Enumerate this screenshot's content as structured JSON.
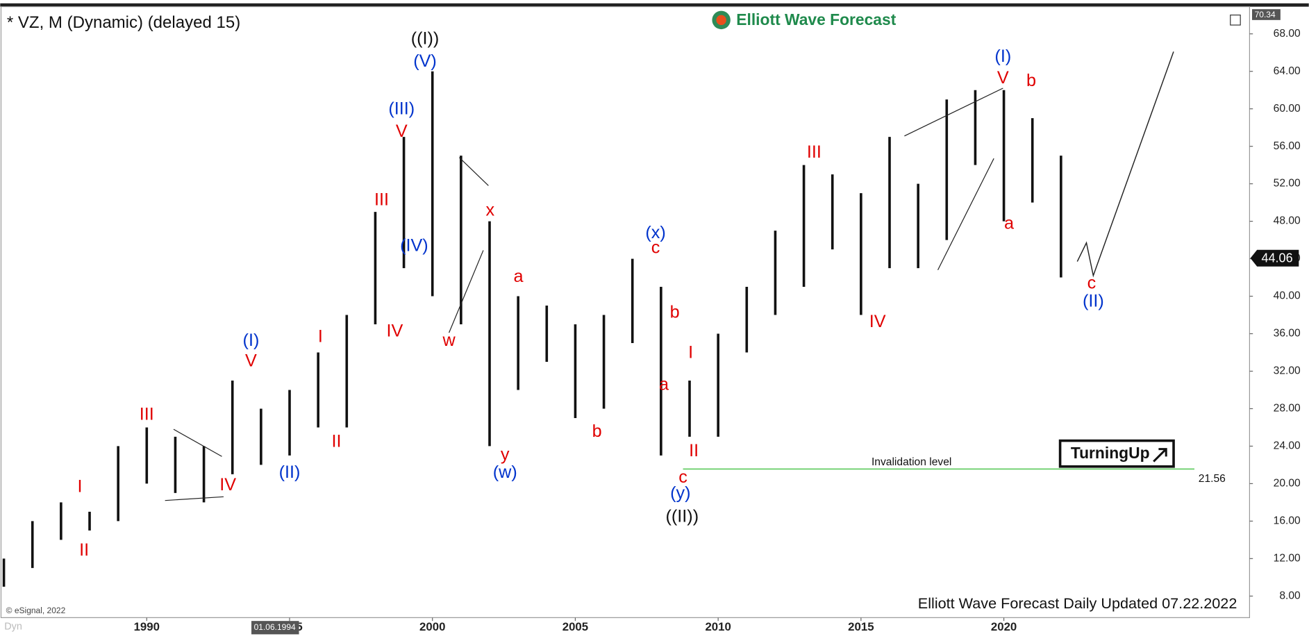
{
  "chart_data": {
    "type": "range-bar",
    "title": "* VZ, M (Dynamic) (delayed 15)",
    "brand": "Elliott Wave Forecast",
    "top_value": "70.34",
    "last_value": "44.06",
    "copyright": "© eSignal, 2022",
    "footer": "Elliott Wave Forecast Daily Updated 07.22.2022",
    "cursor_date": "01.06.1994",
    "corner_label": "Dyn",
    "badge": "TurningUp",
    "color": "#111111",
    "x": [
      1985,
      1986,
      1987,
      1988,
      1989,
      1990,
      1991,
      1992,
      1993,
      1994,
      1995,
      1996,
      1997,
      1998,
      1999,
      2000,
      2001,
      2002,
      2003,
      2004,
      2005,
      2006,
      2007,
      2008,
      2009,
      2010,
      2011,
      2012,
      2013,
      2014,
      2015,
      2016,
      2017,
      2018,
      2019,
      2020,
      2021,
      2022
    ],
    "high": [
      12,
      16,
      18,
      17,
      24,
      26,
      25,
      24,
      31,
      28,
      30,
      34,
      38,
      49,
      57,
      64,
      55,
      48,
      40,
      39,
      37,
      38,
      44,
      41,
      31,
      36,
      41,
      47,
      54,
      53,
      51,
      57,
      52,
      61,
      62,
      62,
      59,
      55
    ],
    "low": [
      9,
      11,
      14,
      15,
      16,
      20,
      19,
      18,
      21,
      22,
      23,
      26,
      26,
      37,
      43,
      40,
      37,
      24,
      30,
      33,
      27,
      28,
      35,
      23,
      25,
      25,
      34,
      38,
      41,
      45,
      38,
      43,
      43,
      46,
      54,
      48,
      50,
      42
    ],
    "xlim": [
      1984.9,
      2028.6
    ],
    "ylim": [
      5.7,
      70.9
    ],
    "xticks": [
      1990,
      1995,
      2000,
      2005,
      2010,
      2015,
      2020
    ],
    "yticks": [
      {
        "value": 8,
        "label": "8.00"
      },
      {
        "value": 12,
        "label": "12.00"
      },
      {
        "value": 16,
        "label": "16.00"
      },
      {
        "value": 20,
        "label": "20.00"
      },
      {
        "value": 24,
        "label": "24.00"
      },
      {
        "value": 28,
        "label": "28.00"
      },
      {
        "value": 32,
        "label": "32.00"
      },
      {
        "value": 36,
        "label": "36.00"
      },
      {
        "value": 40,
        "label": "40.00"
      },
      {
        "value": 44,
        "label": "44.00"
      },
      {
        "value": 48,
        "label": "48.00"
      },
      {
        "value": 52,
        "label": "52.00"
      },
      {
        "value": 56,
        "label": "56.00"
      },
      {
        "value": 60,
        "label": "60.00"
      },
      {
        "value": 64,
        "label": "64.00"
      },
      {
        "value": 68,
        "label": "68.00"
      }
    ],
    "invalidation": {
      "label": "Invalidation level",
      "value": 21.56,
      "value_label": "21.56",
      "x": [
        2008.77,
        2026.67
      ],
      "color": "#66cc66"
    },
    "projection": {
      "x": [
        2022.57,
        2022.89,
        2023.13,
        2025.94
      ],
      "y": [
        43.7,
        45.7,
        42.2,
        66.1
      ]
    },
    "trendlines": [
      [
        1990.94,
        25.8,
        1992.63,
        22.9
      ],
      [
        1990.64,
        18.2,
        1992.69,
        18.6
      ],
      [
        2000.94,
        54.8,
        2001.96,
        51.8
      ],
      [
        2000.58,
        36.1,
        2001.78,
        44.9
      ],
      [
        2016.52,
        57.1,
        2019.97,
        62.2
      ],
      [
        2017.69,
        42.8,
        2019.65,
        54.7
      ]
    ],
    "annotations": [
      {
        "text": "((I))",
        "x": 1999.74,
        "y": 67.4,
        "color": "#111111"
      },
      {
        "text": "(V)",
        "x": 1999.74,
        "y": 65.0,
        "color": "#0033cc"
      },
      {
        "text": "(III)",
        "x": 1998.92,
        "y": 59.9,
        "color": "#0033cc"
      },
      {
        "text": "V",
        "x": 1998.92,
        "y": 57.5,
        "color": "#e00000"
      },
      {
        "text": "III",
        "x": 1998.22,
        "y": 50.2,
        "color": "#e00000"
      },
      {
        "text": "(IV)",
        "x": 1999.36,
        "y": 45.3,
        "color": "#0033cc"
      },
      {
        "text": "IV",
        "x": 1998.68,
        "y": 36.2,
        "color": "#e00000"
      },
      {
        "text": "w",
        "x": 2000.58,
        "y": 35.2,
        "color": "#e00000"
      },
      {
        "text": "x",
        "x": 2002.02,
        "y": 49.1,
        "color": "#e00000"
      },
      {
        "text": "a",
        "x": 2003.01,
        "y": 42.0,
        "color": "#e00000"
      },
      {
        "text": "y",
        "x": 2002.54,
        "y": 23.0,
        "color": "#e00000"
      },
      {
        "text": "(w)",
        "x": 2002.54,
        "y": 21.1,
        "color": "#0033cc"
      },
      {
        "text": "b",
        "x": 2005.76,
        "y": 25.5,
        "color": "#e00000"
      },
      {
        "text": "(x)",
        "x": 2007.81,
        "y": 46.7,
        "color": "#0033cc"
      },
      {
        "text": "c",
        "x": 2007.81,
        "y": 45.1,
        "color": "#e00000"
      },
      {
        "text": "b",
        "x": 2008.48,
        "y": 38.2,
        "color": "#e00000"
      },
      {
        "text": "a",
        "x": 2008.1,
        "y": 30.5,
        "color": "#e00000"
      },
      {
        "text": "I",
        "x": 2009.04,
        "y": 33.9,
        "color": "#e00000"
      },
      {
        "text": "II",
        "x": 2009.15,
        "y": 23.4,
        "color": "#e00000"
      },
      {
        "text": "c",
        "x": 2008.77,
        "y": 20.6,
        "color": "#e00000"
      },
      {
        "text": "(y)",
        "x": 2008.68,
        "y": 18.9,
        "color": "#0033cc"
      },
      {
        "text": "((II))",
        "x": 2008.74,
        "y": 16.4,
        "color": "#111111"
      },
      {
        "text": "III",
        "x": 2013.36,
        "y": 55.3,
        "color": "#e00000"
      },
      {
        "text": "IV",
        "x": 2015.58,
        "y": 37.2,
        "color": "#e00000"
      },
      {
        "text": "(I)",
        "x": 2019.97,
        "y": 65.5,
        "color": "#0033cc"
      },
      {
        "text": "V",
        "x": 2019.97,
        "y": 63.2,
        "color": "#e00000"
      },
      {
        "text": "b",
        "x": 2020.96,
        "y": 62.9,
        "color": "#e00000"
      },
      {
        "text": "a",
        "x": 2020.18,
        "y": 47.7,
        "color": "#e00000"
      },
      {
        "text": "c",
        "x": 2023.07,
        "y": 41.3,
        "color": "#e00000"
      },
      {
        "text": "(II)",
        "x": 2023.13,
        "y": 39.4,
        "color": "#0033cc"
      },
      {
        "text": "(I)",
        "x": 1993.65,
        "y": 35.2,
        "color": "#0033cc"
      },
      {
        "text": "V",
        "x": 1993.65,
        "y": 33.0,
        "color": "#e00000"
      },
      {
        "text": "I",
        "x": 1996.08,
        "y": 35.6,
        "color": "#e00000"
      },
      {
        "text": "II",
        "x": 1996.64,
        "y": 24.4,
        "color": "#e00000"
      },
      {
        "text": "(II)",
        "x": 1995.0,
        "y": 21.1,
        "color": "#0033cc"
      },
      {
        "text": "III",
        "x": 1990.0,
        "y": 27.3,
        "color": "#e00000"
      },
      {
        "text": "IV",
        "x": 1992.84,
        "y": 19.8,
        "color": "#e00000"
      },
      {
        "text": "I",
        "x": 1987.66,
        "y": 19.6,
        "color": "#e00000"
      },
      {
        "text": "II",
        "x": 1987.81,
        "y": 12.8,
        "color": "#e00000"
      }
    ]
  }
}
